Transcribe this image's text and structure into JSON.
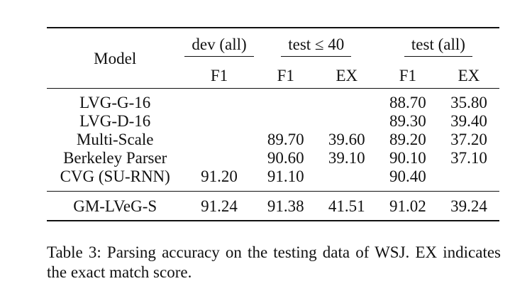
{
  "table": {
    "model_header": "Model",
    "groups": {
      "dev_all": "dev (all)",
      "test_40": "test ≤ 40",
      "test_all": "test (all)"
    },
    "subheaders": {
      "dev_f1": "F1",
      "test40_f1": "F1",
      "test40_ex": "EX",
      "testall_f1": "F1",
      "testall_ex": "EX"
    },
    "rows": [
      {
        "model": "LVG-G-16",
        "dev_f1": "",
        "test40_f1": "",
        "test40_ex": "",
        "testall_f1": "88.70",
        "testall_ex": "35.80"
      },
      {
        "model": "LVG-D-16",
        "dev_f1": "",
        "test40_f1": "",
        "test40_ex": "",
        "testall_f1": "89.30",
        "testall_ex": "39.40"
      },
      {
        "model": "Multi-Scale",
        "dev_f1": "",
        "test40_f1": "89.70",
        "test40_ex": "39.60",
        "testall_f1": "89.20",
        "testall_ex": "37.20"
      },
      {
        "model": "Berkeley Parser",
        "dev_f1": "",
        "test40_f1": "90.60",
        "test40_ex": "39.10",
        "testall_f1": "90.10",
        "testall_ex": "37.10"
      },
      {
        "model": "CVG (SU-RNN)",
        "dev_f1": "91.20",
        "test40_f1": "91.10",
        "test40_ex": "",
        "testall_f1": "90.40",
        "testall_ex": ""
      },
      {
        "model": "GM-LVeG-S",
        "dev_f1": "91.24",
        "test40_f1": "91.38",
        "test40_ex": "41.51",
        "testall_f1": "91.02",
        "testall_ex": "39.24"
      }
    ]
  },
  "caption": "Table 3: Parsing accuracy on the testing data of WSJ. EX indicates the exact match score."
}
